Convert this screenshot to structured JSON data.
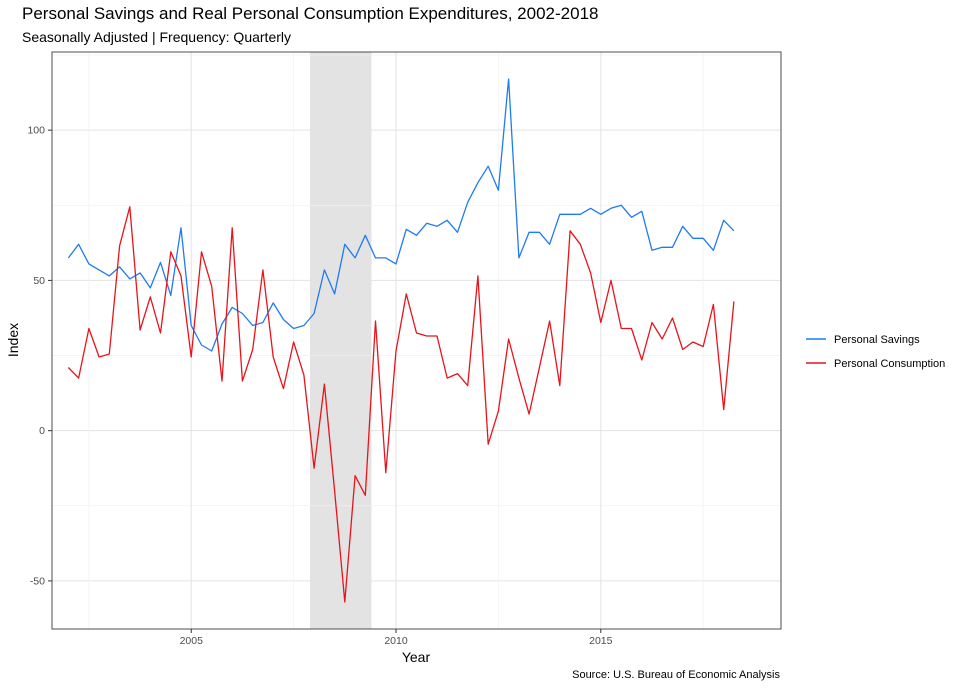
{
  "chart_data": {
    "type": "line",
    "title": "Personal Savings and Real Personal Consumption Expenditures, 2002-2018",
    "subtitle": "Seasonally Adjusted | Frequency: Quarterly",
    "caption": "Source: U.S. Bureau of Economic Analysis",
    "xlabel": "Year",
    "ylabel": "Index",
    "xlim": [
      2001.6,
      2019.4
    ],
    "ylim": [
      -66,
      126
    ],
    "x_ticks": [
      2005,
      2010,
      2015
    ],
    "y_ticks": [
      -50,
      0,
      50,
      100
    ],
    "grid": true,
    "legend_position": "right",
    "shaded_region": {
      "x": [
        2007.9,
        2009.4
      ],
      "color": "#e3e3e3"
    },
    "x": [
      2002.0,
      2002.25,
      2002.5,
      2002.75,
      2003.0,
      2003.25,
      2003.5,
      2003.75,
      2004.0,
      2004.25,
      2004.5,
      2004.75,
      2005.0,
      2005.25,
      2005.5,
      2005.75,
      2006.0,
      2006.25,
      2006.5,
      2006.75,
      2007.0,
      2007.25,
      2007.5,
      2007.75,
      2008.0,
      2008.25,
      2008.5,
      2008.75,
      2009.0,
      2009.25,
      2009.5,
      2009.75,
      2010.0,
      2010.25,
      2010.5,
      2010.75,
      2011.0,
      2011.25,
      2011.5,
      2011.75,
      2012.0,
      2012.25,
      2012.5,
      2012.75,
      2013.0,
      2013.25,
      2013.5,
      2013.75,
      2014.0,
      2014.25,
      2014.5,
      2014.75,
      2015.0,
      2015.25,
      2015.5,
      2015.75,
      2016.0,
      2016.25,
      2016.5,
      2016.75,
      2017.0,
      2017.25,
      2017.5,
      2017.75,
      2018.0,
      2018.25
    ],
    "series": [
      {
        "name": "Personal Savings",
        "color": "#1f7bf2",
        "values": [
          57.5,
          62,
          55.5,
          53.5,
          51.5,
          54.5,
          50.5,
          52.5,
          47.5,
          56,
          45,
          67.5,
          35,
          28.5,
          26.5,
          35.5,
          41,
          39,
          35,
          36,
          42.5,
          37,
          34,
          35,
          39,
          53.5,
          45.5,
          62,
          57.5,
          65,
          57.5,
          57.5,
          55.5,
          67,
          65,
          69,
          68,
          70,
          66,
          76,
          82.5,
          88,
          80,
          117,
          57.5,
          66,
          66,
          62,
          72,
          72,
          72,
          74,
          72,
          74,
          75,
          71,
          73,
          60,
          61,
          61,
          68,
          64,
          64,
          60,
          70,
          66.5
        ]
      },
      {
        "name": "Personal Consumption",
        "color": "#e8141b",
        "values": [
          21,
          17.5,
          34,
          24.5,
          25.5,
          61.5,
          74.5,
          33.5,
          44.5,
          32.5,
          59.5,
          51.5,
          24.5,
          59.5,
          48,
          16.5,
          67.5,
          16.5,
          27,
          53.5,
          24.5,
          14,
          29.5,
          18.5,
          -12.5,
          15.5,
          -20,
          -57,
          -15,
          -21.5,
          36.5,
          -14,
          26.5,
          45.5,
          32.5,
          31.5,
          31.5,
          17.5,
          19,
          15,
          51.5,
          -4.5,
          6.5,
          30.5,
          17.5,
          5.5,
          21,
          36.5,
          15,
          66.5,
          62,
          52.5,
          36,
          50,
          34,
          34,
          23.5,
          36,
          30.5,
          37.5,
          27,
          29.5,
          28,
          42,
          7,
          43
        ]
      }
    ]
  }
}
